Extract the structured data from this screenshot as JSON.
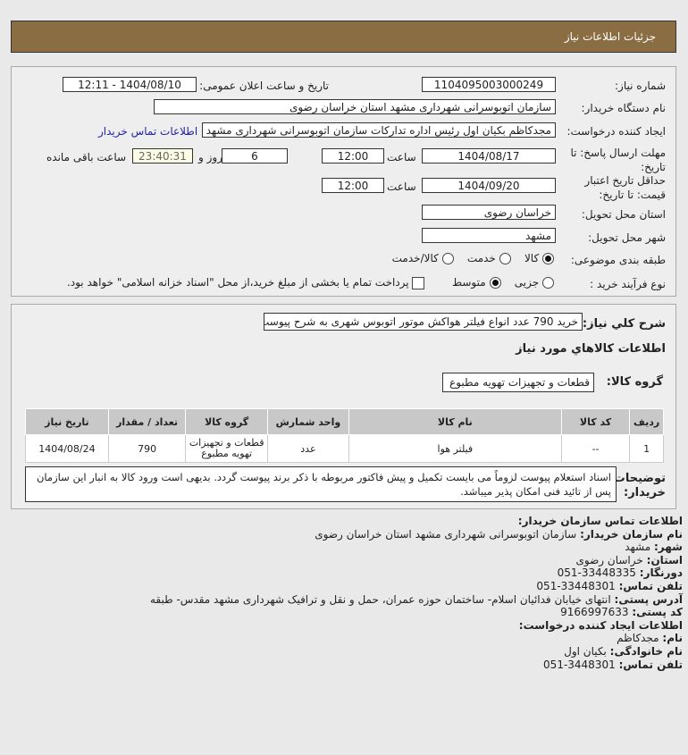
{
  "header": {
    "title": "جزئیات اطلاعات نیاز"
  },
  "form": {
    "need_number_label": "شماره نیاز:",
    "need_number": "1104095003000249",
    "announce_label": "تاریخ و ساعت اعلان عمومی:",
    "announce_value": "1404/08/10 - 12:11",
    "buyer_org_label": "نام دستگاه خریدار:",
    "buyer_org": "سازمان اتوبوسرانی شهرداری مشهد استان خراسان رضوی",
    "creator_label": "ایجاد کننده درخواست:",
    "creator": "مجدکاظم بکیان اول رئیس اداره تدارکات سازمان اتوبوسرانی شهرداری مشهد استان",
    "contact_link": "اطلاعات تماس خریدار",
    "deadline_label": "مهلت ارسال پاسخ: تا تاریخ:",
    "deadline_date": "1404/08/17",
    "time_label": "ساعت",
    "deadline_time": "12:00",
    "days": "6",
    "days_label": "روز و",
    "remaining": "23:40:31",
    "remaining_label": "ساعت باقی مانده",
    "validity_label": "حداقل تاریخ اعتبار قیمت: تا تاریخ:",
    "validity_date": "1404/09/20",
    "validity_time": "12:00",
    "province_label": "استان محل تحویل:",
    "province": "خراسان رضوی",
    "city_label": "شهر محل تحویل:",
    "city": "مشهد",
    "category_label": "طبقه بندی موضوعی:",
    "category_options": [
      "کالا",
      "خدمت",
      "کالا/خدمت"
    ],
    "category_selected": "کالا",
    "process_label": "نوع فرآیند خرید :",
    "process_options": [
      "جزیی",
      "متوسط"
    ],
    "process_selected": "متوسط",
    "payment_text": "پرداخت تمام یا بخشی از مبلغ خرید،از محل \"اسناد خزانه اسلامی\" خواهد بود.",
    "payment_checked": false
  },
  "details": {
    "summary_label": "شرح کلي نياز:",
    "summary": "خرید 790 عدد انواع فیلتر هواکش موتور اتوبوس شهری به شرح پیوست",
    "goods_title": "اطلاعات کالاهاي مورد نياز",
    "group_label": "گروه کالا:",
    "group": "قطعات و تجهیزات تهویه مطبوع",
    "table": {
      "headers": [
        "ردیف",
        "کد کالا",
        "نام کالا",
        "واحد شمارش",
        "گروه کالا",
        "تعداد / مقدار",
        "تاریخ نیاز"
      ],
      "rows": [
        [
          "1",
          "--",
          "فیلتر هوا",
          "عدد",
          "قطعات و تجهیزات تهویه مطبوع",
          "790",
          "1404/08/24"
        ]
      ]
    },
    "notes_label": "توضیحات خریدار:",
    "notes": "اسناد استعلام پیوست لزوماً می بایست تکمیل و پیش فاکتور مربوطه با ذکر برند پیوست گردد. بدیهی است ورود کالا به انبار این سازمان پس از تائید فنی امکان پذیر میباشد."
  },
  "contact": {
    "title": "اطلاعات تماس سازمان خریدار:",
    "lines": [
      {
        "k": "نام سازمان خریدار:",
        "v": "سازمان اتوبوسرانی شهرداری مشهد استان خراسان رضوی"
      },
      {
        "k": "شهر:",
        "v": "مشهد"
      },
      {
        "k": "استان:",
        "v": "خراسان رضوی"
      },
      {
        "k": "دورنگار:",
        "v": "051-33448335"
      },
      {
        "k": "تلفن تماس:",
        "v": "051-33448301"
      },
      {
        "k": "آدرس پستی:",
        "v": "انتهای خیابان فدائیان اسلام- ساختمان حوزه عمران، حمل و نقل و ترافیک شهرداری مشهد مقدس- طبقه"
      },
      {
        "k": "کد پستی:",
        "v": "9166997633"
      }
    ],
    "creator_title": "اطلاعات ایجاد کننده درخواست:",
    "creator_lines": [
      {
        "k": "نام:",
        "v": "مجدکاظم"
      },
      {
        "k": "نام خانوادگی:",
        "v": "بکیان اول"
      },
      {
        "k": "تلفن تماس:",
        "v": "051-3448301"
      }
    ]
  }
}
